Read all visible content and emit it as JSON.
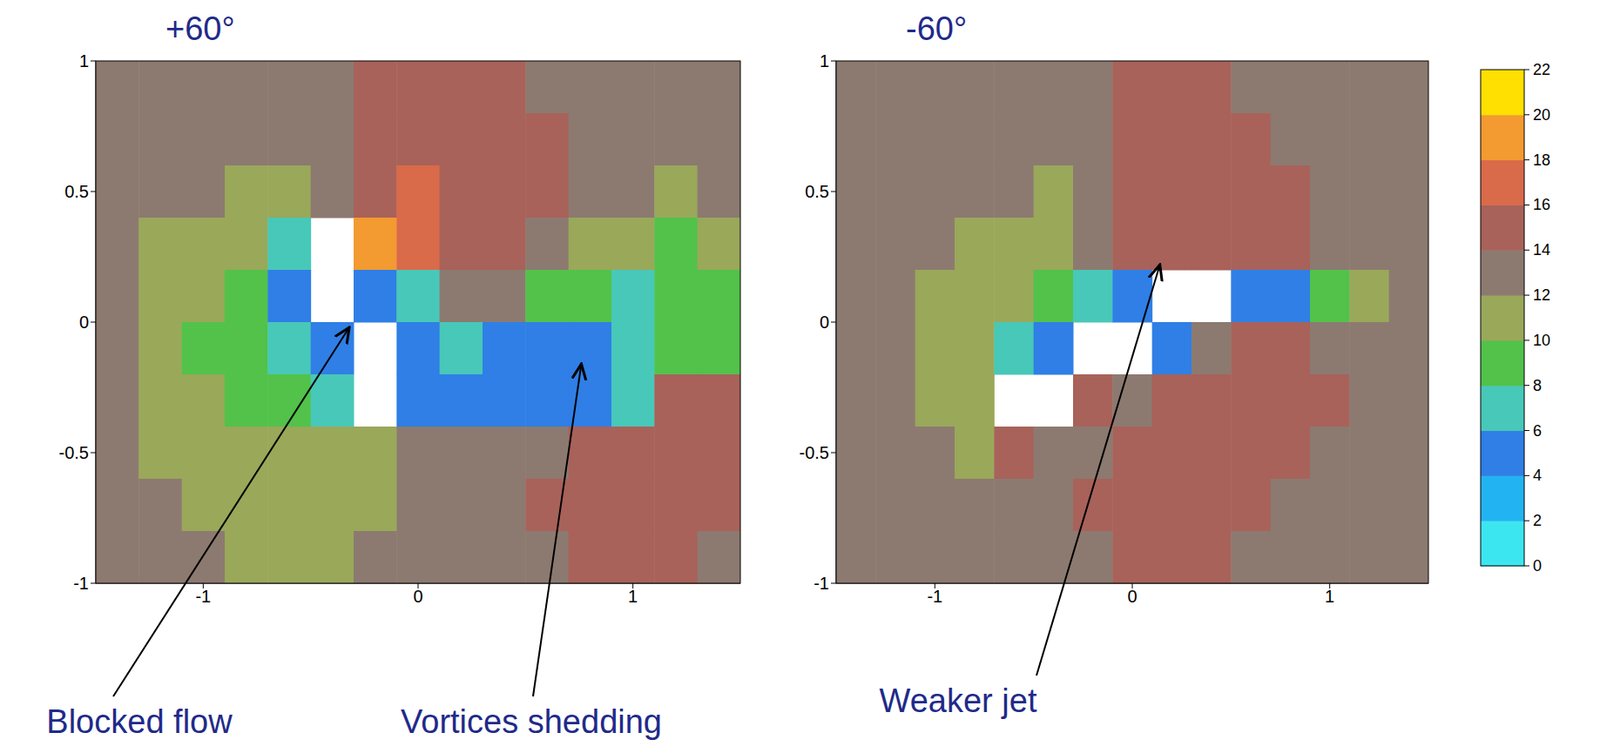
{
  "chart_data": [
    {
      "type": "heatmap",
      "title": "+60°",
      "x": [
        -1.4,
        -1.2,
        -1.0,
        -0.8,
        -0.6,
        -0.4,
        -0.2,
        0.0,
        0.2,
        0.4,
        0.6,
        0.8,
        1.0,
        1.2,
        1.4
      ],
      "y": [
        0.9,
        0.7,
        0.5,
        0.3,
        0.1,
        -0.1,
        -0.3,
        -0.5,
        -0.7,
        -0.9
      ],
      "cells": [
        [
          13,
          13,
          13,
          13,
          13,
          13,
          14,
          14,
          14,
          14,
          13,
          13,
          13,
          13,
          13
        ],
        [
          13,
          13,
          13,
          13,
          13,
          13,
          14,
          15,
          15,
          14,
          14,
          13,
          13,
          13,
          13
        ],
        [
          13,
          13,
          13,
          11,
          11,
          13,
          15,
          16,
          15,
          14,
          14,
          13,
          13,
          11,
          13
        ],
        [
          13,
          11,
          10,
          10,
          6,
          null,
          18,
          17,
          14,
          14,
          13,
          11,
          10,
          9,
          11
        ],
        [
          13,
          11,
          10,
          8,
          5,
          null,
          5,
          6,
          13,
          12,
          9,
          8,
          7,
          8,
          9
        ],
        [
          13,
          11,
          9,
          8,
          6,
          5,
          null,
          5,
          6,
          5,
          5,
          4,
          6,
          8,
          9
        ],
        [
          13,
          11,
          10,
          9,
          9,
          7,
          null,
          4,
          5,
          4,
          4,
          5,
          6,
          14,
          14
        ],
        [
          13,
          11,
          10,
          10,
          10,
          11,
          11,
          12,
          13,
          13,
          13,
          14,
          15,
          14,
          14
        ],
        [
          13,
          13,
          11,
          11,
          10,
          11,
          11,
          13,
          13,
          13,
          14,
          14,
          14,
          14,
          14
        ],
        [
          13,
          13,
          13,
          11,
          11,
          11,
          12,
          13,
          13,
          13,
          13,
          14,
          14,
          14,
          13
        ]
      ],
      "xlim": [
        -1.5,
        1.5
      ],
      "ylim": [
        -1,
        1
      ],
      "xticks": [
        -1,
        0,
        1
      ],
      "yticks": [
        -1,
        -0.5,
        0,
        0.5,
        1
      ],
      "annotations": [
        {
          "text": "Blocked flow",
          "x": -0.32,
          "y": -0.02
        },
        {
          "text": "Vortices shedding",
          "x": 0.76,
          "y": -0.16
        }
      ]
    },
    {
      "type": "heatmap",
      "title": "-60°",
      "x": [
        -1.4,
        -1.2,
        -1.0,
        -0.8,
        -0.6,
        -0.4,
        -0.2,
        0.0,
        0.2,
        0.4,
        0.6,
        0.8,
        1.0,
        1.2,
        1.4
      ],
      "y": [
        0.9,
        0.7,
        0.5,
        0.3,
        0.1,
        -0.1,
        -0.3,
        -0.5,
        -0.7,
        -0.9
      ],
      "cells": [
        [
          13,
          13,
          13,
          13,
          13,
          13,
          13,
          14,
          14,
          14,
          13,
          13,
          13,
          13,
          13
        ],
        [
          13,
          13,
          13,
          13,
          13,
          13,
          13,
          14,
          14,
          14,
          14,
          13,
          13,
          13,
          13
        ],
        [
          13,
          13,
          13,
          13,
          13,
          11,
          13,
          14,
          15,
          14,
          14,
          14,
          13,
          13,
          13
        ],
        [
          13,
          13,
          13,
          11,
          11,
          10,
          13,
          15,
          15,
          14,
          14,
          14,
          13,
          13,
          13
        ],
        [
          13,
          13,
          11,
          11,
          10,
          9,
          6,
          5,
          null,
          null,
          4,
          4,
          9,
          10,
          13
        ],
        [
          13,
          13,
          11,
          11,
          6,
          5,
          null,
          null,
          5,
          13,
          14,
          14,
          13,
          13,
          13
        ],
        [
          13,
          13,
          11,
          11,
          null,
          null,
          15,
          13,
          14,
          14,
          14,
          14,
          14,
          13,
          13
        ],
        [
          13,
          13,
          13,
          11,
          15,
          13,
          13,
          14,
          14,
          14,
          14,
          14,
          13,
          13,
          13
        ],
        [
          13,
          13,
          13,
          13,
          13,
          13,
          14,
          14,
          14,
          14,
          14,
          13,
          13,
          13,
          13
        ],
        [
          13,
          13,
          13,
          13,
          13,
          13,
          13,
          14,
          14,
          14,
          13,
          13,
          13,
          13,
          13
        ]
      ],
      "xlim": [
        -1.5,
        1.5
      ],
      "ylim": [
        -1,
        1
      ],
      "xticks": [
        -1,
        0,
        1
      ],
      "yticks": [
        -1,
        -0.5,
        0,
        0.5,
        1
      ],
      "annotations": [
        {
          "text": "Weaker jet",
          "x": 0.14,
          "y": 0.22
        }
      ]
    }
  ],
  "colorbar": {
    "range": [
      0,
      22
    ],
    "ticks": [
      0,
      2,
      4,
      6,
      8,
      10,
      12,
      14,
      16,
      18,
      20,
      22
    ]
  }
}
